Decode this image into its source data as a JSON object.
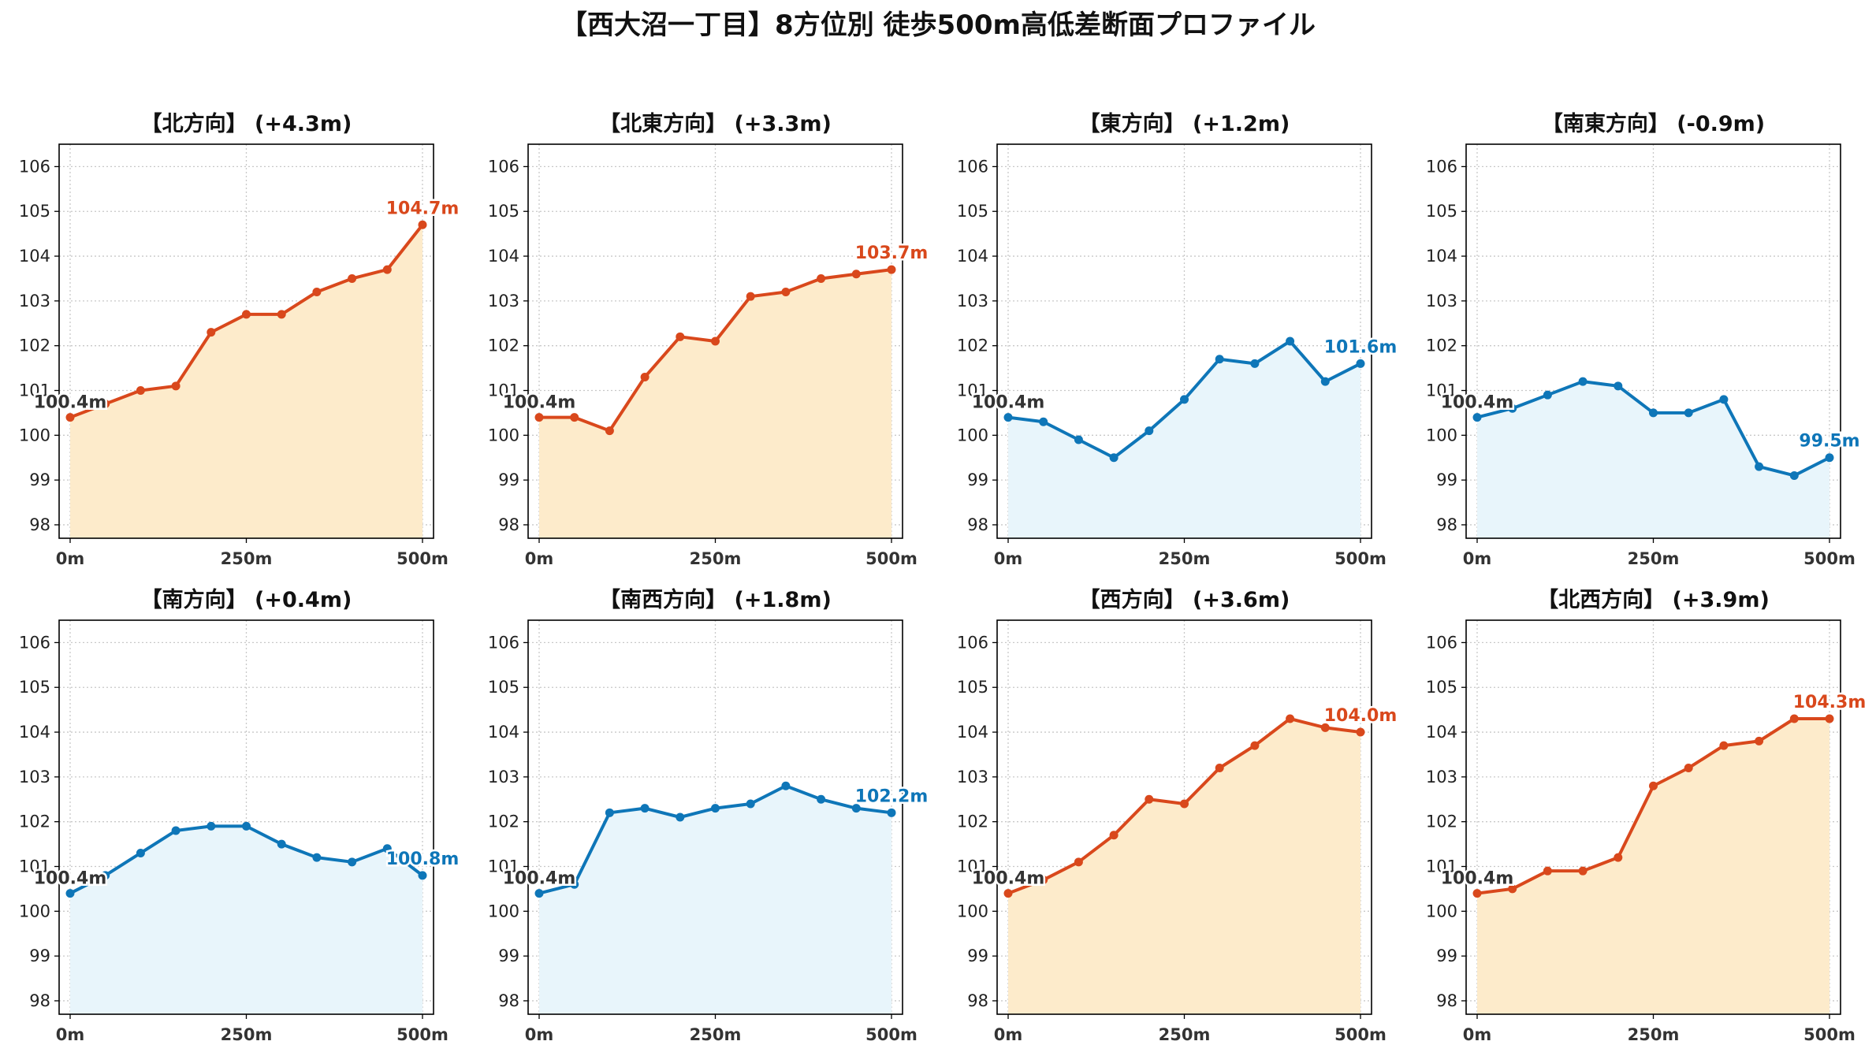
{
  "title": "【西大沼一丁目】8方位別 徒歩500m高低差断面プロファイル",
  "colors": {
    "up_line": "#D9481C",
    "up_fill": "#FDEBCB",
    "down_line": "#0E76B8",
    "down_fill": "#E8F5FB",
    "grid": "#C8C8C8",
    "axis": "#000000",
    "start_label": "#333333"
  },
  "chart_data": [
    {
      "type": "line",
      "title": "【北方向】 (+4.3m)",
      "trend": "up",
      "x": [
        0,
        50,
        100,
        150,
        200,
        250,
        300,
        350,
        400,
        450,
        500
      ],
      "y": [
        100.4,
        100.7,
        101.0,
        101.1,
        102.3,
        102.7,
        102.7,
        103.2,
        103.5,
        103.7,
        104.7
      ],
      "start_label": "100.4m",
      "end_label": "104.7m",
      "xticks": [
        "0m",
        "250m",
        "500m"
      ],
      "yticks": [
        "98",
        "99",
        "100",
        "101",
        "102",
        "103",
        "104",
        "105",
        "106"
      ],
      "ylim": [
        97.7,
        106.5
      ],
      "grid": true
    },
    {
      "type": "line",
      "title": "【北東方向】 (+3.3m)",
      "trend": "up",
      "x": [
        0,
        50,
        100,
        150,
        200,
        250,
        300,
        350,
        400,
        450,
        500
      ],
      "y": [
        100.4,
        100.4,
        100.1,
        101.3,
        102.2,
        102.1,
        103.1,
        103.2,
        103.5,
        103.6,
        103.7
      ],
      "start_label": "100.4m",
      "end_label": "103.7m",
      "xticks": [
        "0m",
        "250m",
        "500m"
      ],
      "yticks": [
        "98",
        "99",
        "100",
        "101",
        "102",
        "103",
        "104",
        "105",
        "106"
      ],
      "ylim": [
        97.7,
        106.5
      ],
      "grid": true
    },
    {
      "type": "line",
      "title": "【東方向】 (+1.2m)",
      "trend": "down",
      "x": [
        0,
        50,
        100,
        150,
        200,
        250,
        300,
        350,
        400,
        450,
        500
      ],
      "y": [
        100.4,
        100.3,
        99.9,
        99.5,
        100.1,
        100.8,
        101.7,
        101.6,
        102.1,
        101.2,
        101.6
      ],
      "start_label": "100.4m",
      "end_label": "101.6m",
      "xticks": [
        "0m",
        "250m",
        "500m"
      ],
      "yticks": [
        "98",
        "99",
        "100",
        "101",
        "102",
        "103",
        "104",
        "105",
        "106"
      ],
      "ylim": [
        97.7,
        106.5
      ],
      "grid": true
    },
    {
      "type": "line",
      "title": "【南東方向】 (-0.9m)",
      "trend": "down",
      "x": [
        0,
        50,
        100,
        150,
        200,
        250,
        300,
        350,
        400,
        450,
        500
      ],
      "y": [
        100.4,
        100.6,
        100.9,
        101.2,
        101.1,
        100.5,
        100.5,
        100.8,
        99.3,
        99.1,
        99.5
      ],
      "start_label": "100.4m",
      "end_label": "99.5m",
      "xticks": [
        "0m",
        "250m",
        "500m"
      ],
      "yticks": [
        "98",
        "99",
        "100",
        "101",
        "102",
        "103",
        "104",
        "105",
        "106"
      ],
      "ylim": [
        97.7,
        106.5
      ],
      "grid": true
    },
    {
      "type": "line",
      "title": "【南方向】 (+0.4m)",
      "trend": "down",
      "x": [
        0,
        50,
        100,
        150,
        200,
        250,
        300,
        350,
        400,
        450,
        500
      ],
      "y": [
        100.4,
        100.8,
        101.3,
        101.8,
        101.9,
        101.9,
        101.5,
        101.2,
        101.1,
        101.4,
        100.8
      ],
      "start_label": "100.4m",
      "end_label": "100.8m",
      "xticks": [
        "0m",
        "250m",
        "500m"
      ],
      "yticks": [
        "98",
        "99",
        "100",
        "101",
        "102",
        "103",
        "104",
        "105",
        "106"
      ],
      "ylim": [
        97.7,
        106.5
      ],
      "grid": true
    },
    {
      "type": "line",
      "title": "【南西方向】 (+1.8m)",
      "trend": "down",
      "x": [
        0,
        50,
        100,
        150,
        200,
        250,
        300,
        350,
        400,
        450,
        500
      ],
      "y": [
        100.4,
        100.6,
        102.2,
        102.3,
        102.1,
        102.3,
        102.4,
        102.8,
        102.5,
        102.3,
        102.2
      ],
      "start_label": "100.4m",
      "end_label": "102.2m",
      "xticks": [
        "0m",
        "250m",
        "500m"
      ],
      "yticks": [
        "98",
        "99",
        "100",
        "101",
        "102",
        "103",
        "104",
        "105",
        "106"
      ],
      "ylim": [
        97.7,
        106.5
      ],
      "grid": true
    },
    {
      "type": "line",
      "title": "【西方向】 (+3.6m)",
      "trend": "up",
      "x": [
        0,
        50,
        100,
        150,
        200,
        250,
        300,
        350,
        400,
        450,
        500
      ],
      "y": [
        100.4,
        100.7,
        101.1,
        101.7,
        102.5,
        102.4,
        103.2,
        103.7,
        104.3,
        104.1,
        104.0
      ],
      "start_label": "100.4m",
      "end_label": "104.0m",
      "xticks": [
        "0m",
        "250m",
        "500m"
      ],
      "yticks": [
        "98",
        "99",
        "100",
        "101",
        "102",
        "103",
        "104",
        "105",
        "106"
      ],
      "ylim": [
        97.7,
        106.5
      ],
      "grid": true
    },
    {
      "type": "line",
      "title": "【北西方向】 (+3.9m)",
      "trend": "up",
      "x": [
        0,
        50,
        100,
        150,
        200,
        250,
        300,
        350,
        400,
        450,
        500
      ],
      "y": [
        100.4,
        100.5,
        100.9,
        100.9,
        101.2,
        102.8,
        103.2,
        103.7,
        103.8,
        104.3,
        104.3
      ],
      "start_label": "100.4m",
      "end_label": "104.3m",
      "xticks": [
        "0m",
        "250m",
        "500m"
      ],
      "yticks": [
        "98",
        "99",
        "100",
        "101",
        "102",
        "103",
        "104",
        "105",
        "106"
      ],
      "ylim": [
        97.7,
        106.5
      ],
      "grid": true
    }
  ]
}
